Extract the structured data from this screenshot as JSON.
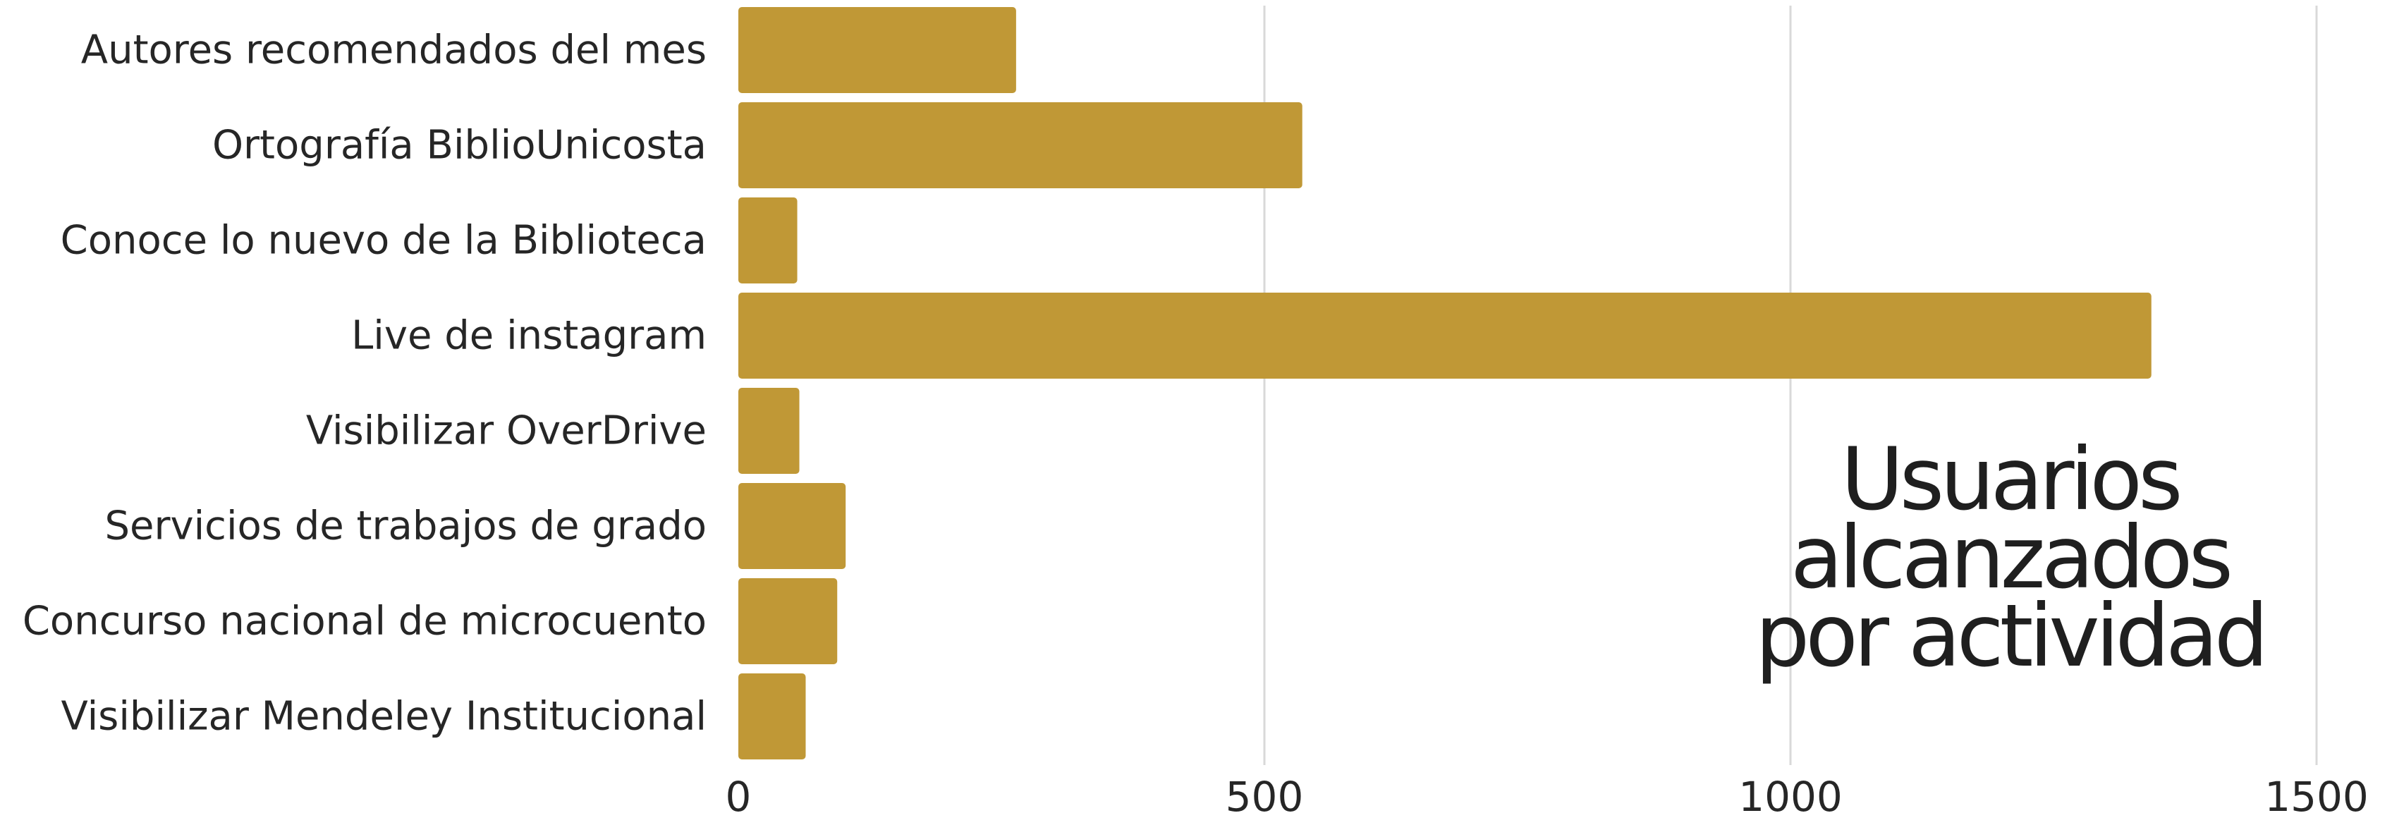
{
  "chart_data": {
    "type": "bar",
    "orientation": "horizontal",
    "title_lines": [
      "Usuarios",
      "alcanzados",
      "por actividad"
    ],
    "title_position": "bottom-right inside plot",
    "categories": [
      "Autores recomendados del mes",
      "Ortografía BiblioUnicosta",
      "Conoce lo nuevo de la Biblioteca",
      "Live de instagram",
      "Visibilizar OverDrive",
      "Servicios de trabajos de grado",
      "Concurso nacional de microcuento",
      "Visibilizar Mendeley Institucional"
    ],
    "values": [
      264,
      536,
      56,
      1343,
      58,
      102,
      94,
      64
    ],
    "x_ticks": [
      "0",
      "500",
      "1000",
      "1500"
    ],
    "x_tick_values": [
      0,
      500,
      1000,
      1500
    ],
    "xlim": [
      0,
      1500
    ],
    "xlabel": "",
    "ylabel": "",
    "grid": "vertical gridlines",
    "legend": "none",
    "bar_color": "#C09836"
  }
}
